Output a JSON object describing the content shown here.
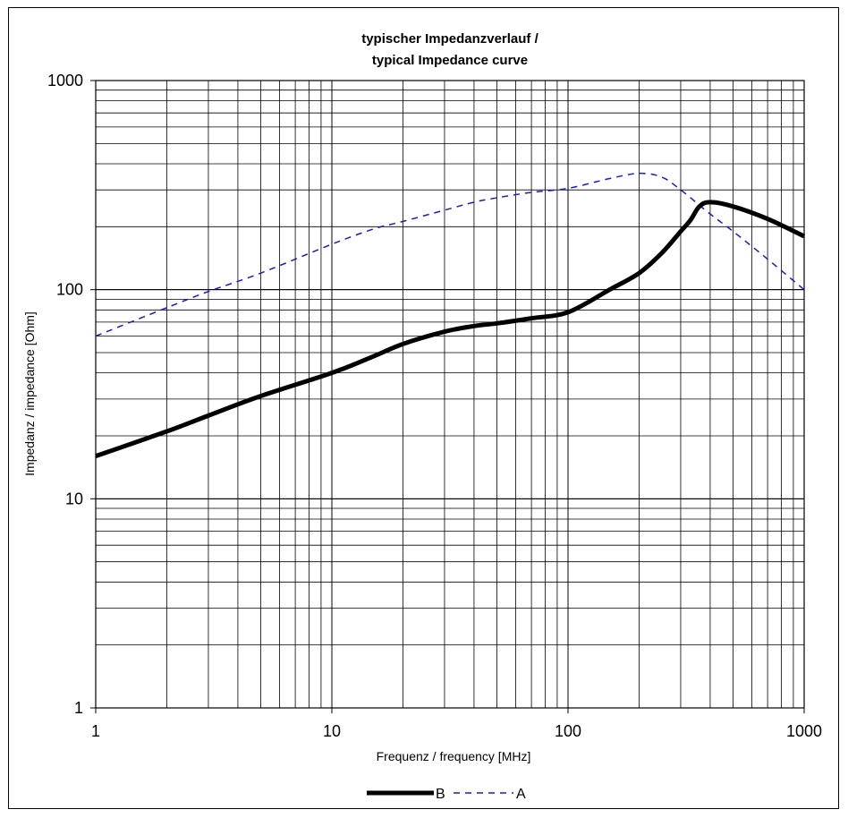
{
  "chart_data": {
    "type": "line",
    "title_line1": "typischer Impedanzverlauf /",
    "title_line2": "typical Impedance curve",
    "xlabel": "Frequenz / frequency [MHz]",
    "ylabel": "Impedanz / impedance [Ohm]",
    "x_scale": "log",
    "y_scale": "log",
    "xlim": [
      1,
      1000
    ],
    "ylim": [
      1,
      1000
    ],
    "grid": true,
    "legend_position": "bottom-center",
    "x_ticks": [
      1,
      10,
      100,
      1000
    ],
    "x_tick_labels": [
      "1",
      "10",
      "100",
      "1000"
    ],
    "y_ticks": [
      1,
      10,
      100,
      1000
    ],
    "y_tick_labels": [
      "1",
      "10",
      "100",
      "1000"
    ],
    "series": [
      {
        "name": "B",
        "color": "#000000",
        "style": "solid-thick",
        "x": [
          1,
          2,
          3,
          5,
          10,
          15,
          20,
          30,
          40,
          50,
          70,
          100,
          150,
          200,
          250,
          300,
          330,
          360,
          400,
          500,
          700,
          1000
        ],
        "y": [
          16,
          21,
          25,
          31,
          40,
          48,
          55,
          63,
          67,
          69,
          73,
          78,
          100,
          120,
          150,
          190,
          215,
          250,
          262,
          250,
          218,
          180
        ]
      },
      {
        "name": "A",
        "color": "#1a1acc",
        "style": "dashed",
        "x": [
          1,
          2,
          3,
          5,
          10,
          15,
          20,
          30,
          40,
          50,
          70,
          100,
          150,
          200,
          250,
          300,
          400,
          500,
          700,
          1000
        ],
        "y": [
          60,
          82,
          98,
          120,
          165,
          195,
          212,
          240,
          262,
          275,
          292,
          305,
          340,
          360,
          345,
          300,
          230,
          190,
          140,
          100
        ]
      }
    ]
  }
}
